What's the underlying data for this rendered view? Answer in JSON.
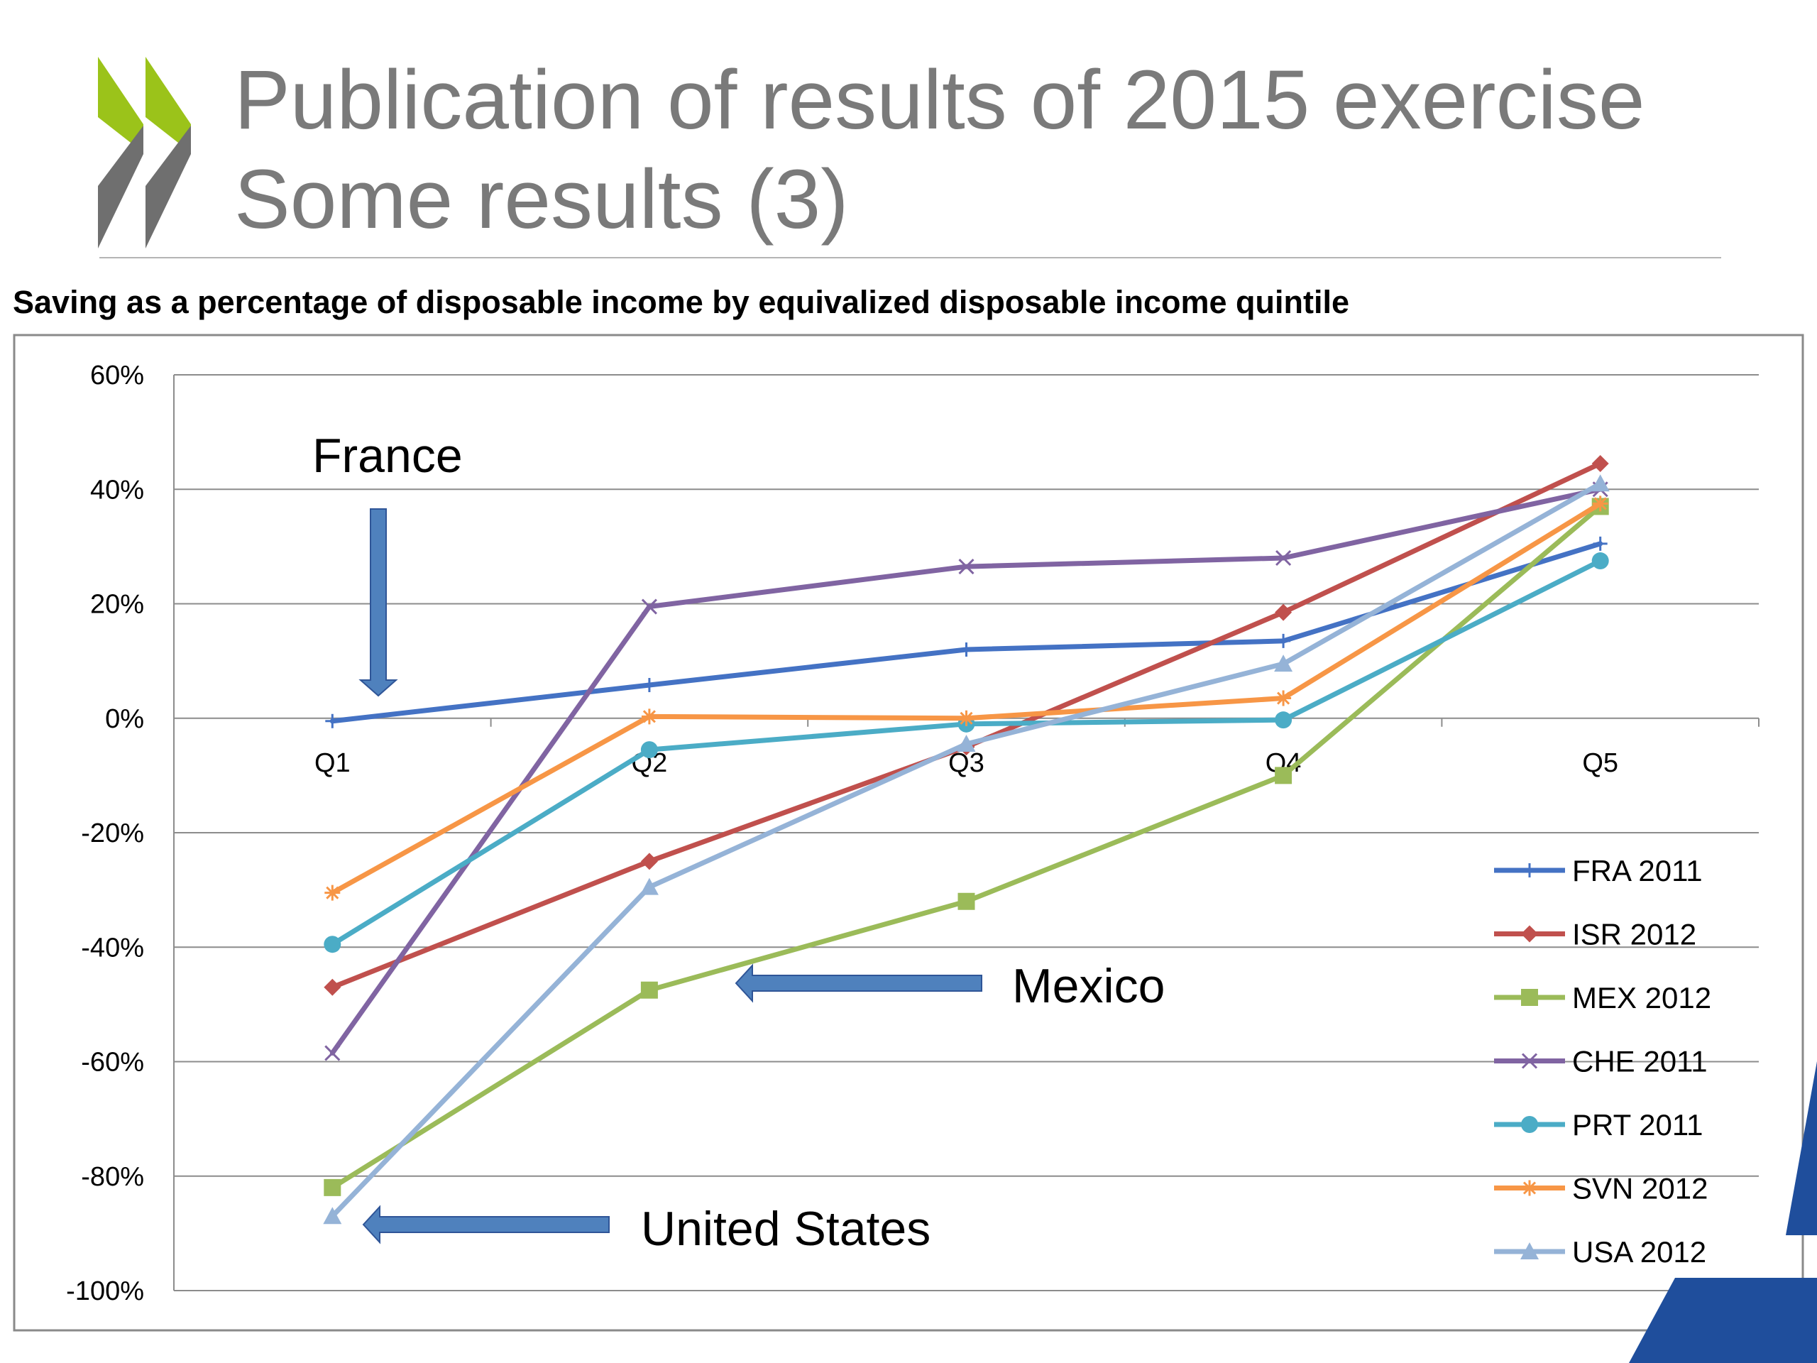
{
  "slide": {
    "title_line1": "Publication of results of 2015 exercise",
    "title_line2": "Some results (3)",
    "brand_colors": {
      "chevron_green": "#9bc31a",
      "chevron_grey": "#6f6f6f",
      "title_grey": "#7a7a7a",
      "corner_blue": "#1f4e9c"
    }
  },
  "chart_data": {
    "type": "line",
    "title": "Saving as a percentage of disposable income by equivalized disposable income quintile",
    "categories": [
      "Q1",
      "Q2",
      "Q3",
      "Q4",
      "Q5"
    ],
    "yticks": [
      "60%",
      "40%",
      "20%",
      "0%",
      "-20%",
      "-40%",
      "-60%",
      "-80%",
      "-100%"
    ],
    "ylim": [
      -100,
      60
    ],
    "grid": true,
    "legend_position": "bottom-right",
    "series": [
      {
        "name": "FRA 2011",
        "color": "#4472c4",
        "marker": "plus",
        "values": [
          -0.5,
          5.8,
          12,
          13.5,
          30.5
        ]
      },
      {
        "name": "ISR 2012",
        "color": "#c0504d",
        "marker": "diamond",
        "values": [
          -47,
          -25,
          -5,
          18.5,
          44.5
        ]
      },
      {
        "name": "MEX 2012",
        "color": "#9bbb59",
        "marker": "square",
        "values": [
          -82,
          -47.5,
          -32,
          -10,
          37
        ]
      },
      {
        "name": "CHE 2011",
        "color": "#8064a2",
        "marker": "x",
        "values": [
          -58.5,
          19.5,
          26.5,
          28,
          40
        ]
      },
      {
        "name": "PRT 2011",
        "color": "#4bacc6",
        "marker": "circle",
        "values": [
          -39.5,
          -5.5,
          -1,
          -0.3,
          27.5
        ]
      },
      {
        "name": "SVN 2012",
        "color": "#f79646",
        "marker": "star",
        "values": [
          -30.5,
          0.3,
          0,
          3.5,
          37.5
        ]
      },
      {
        "name": "USA 2012",
        "color": "#95b3d7",
        "marker": "triangle",
        "values": [
          -87,
          -29.5,
          -4.5,
          9.5,
          41
        ]
      }
    ],
    "annotations": [
      {
        "label": "France",
        "arrow_color": "#4f81bd"
      },
      {
        "label": "Mexico",
        "arrow_color": "#4f81bd"
      },
      {
        "label": "United States",
        "arrow_color": "#4f81bd"
      }
    ]
  }
}
